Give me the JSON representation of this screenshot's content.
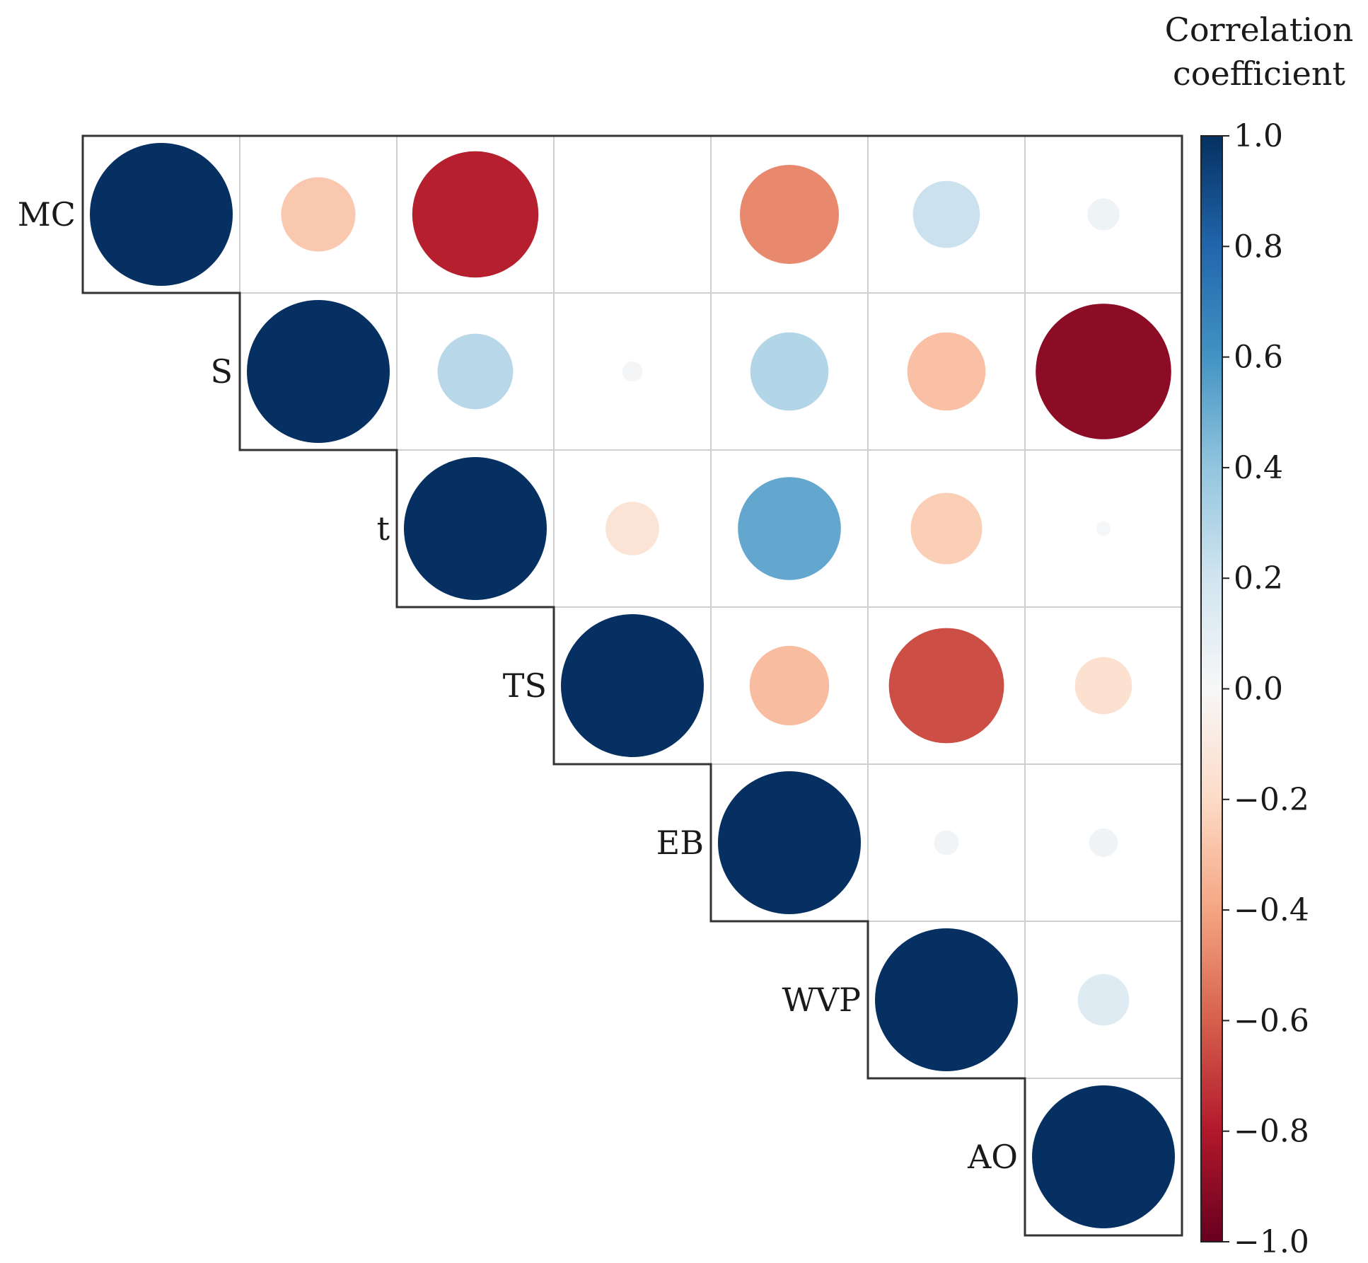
{
  "chart_data": {
    "type": "heatmap",
    "subtype": "upper-triangular circle correlation matrix",
    "variables": [
      "MC",
      "S",
      "t",
      "TS",
      "EB",
      "WVP",
      "AO"
    ],
    "matrix": [
      [
        1.0,
        -0.27,
        -0.78,
        0.0,
        -0.48,
        0.22,
        0.05
      ],
      [
        null,
        1.0,
        0.28,
        0.02,
        0.3,
        -0.3,
        -0.9
      ],
      [
        null,
        null,
        1.0,
        -0.14,
        0.52,
        -0.25,
        0.01
      ],
      [
        null,
        null,
        null,
        1.0,
        -0.31,
        -0.65,
        -0.16
      ],
      [
        null,
        null,
        null,
        null,
        1.0,
        0.03,
        0.04
      ],
      [
        null,
        null,
        null,
        null,
        null,
        1.0,
        0.13
      ],
      [
        null,
        null,
        null,
        null,
        null,
        null,
        1.0
      ]
    ],
    "colorbar": {
      "label_lines": [
        "Correlation",
        "coefficient"
      ],
      "range": [
        -1.0,
        1.0
      ],
      "ticks": [
        "1.0",
        "0.8",
        "0.6",
        "0.4",
        "0.2",
        "0.0",
        "−0.2",
        "−0.4",
        "−0.6",
        "−0.8",
        "−1.0"
      ],
      "tick_values": [
        1.0,
        0.8,
        0.6,
        0.4,
        0.2,
        0.0,
        -0.2,
        -0.4,
        -0.6,
        -0.8,
        -1.0
      ],
      "colormap": "RdBu",
      "stops": [
        {
          "value": -1.0,
          "color": "#67001f"
        },
        {
          "value": -0.8,
          "color": "#b2182b"
        },
        {
          "value": -0.6,
          "color": "#d6604d"
        },
        {
          "value": -0.4,
          "color": "#f4a582"
        },
        {
          "value": -0.2,
          "color": "#fddbc7"
        },
        {
          "value": 0.0,
          "color": "#f7f7f7"
        },
        {
          "value": 0.2,
          "color": "#d1e5f0"
        },
        {
          "value": 0.4,
          "color": "#92c5de"
        },
        {
          "value": 0.6,
          "color": "#4393c3"
        },
        {
          "value": 0.8,
          "color": "#2166ac"
        },
        {
          "value": 1.0,
          "color": "#053061"
        }
      ],
      "position": "right"
    },
    "grid": true
  }
}
